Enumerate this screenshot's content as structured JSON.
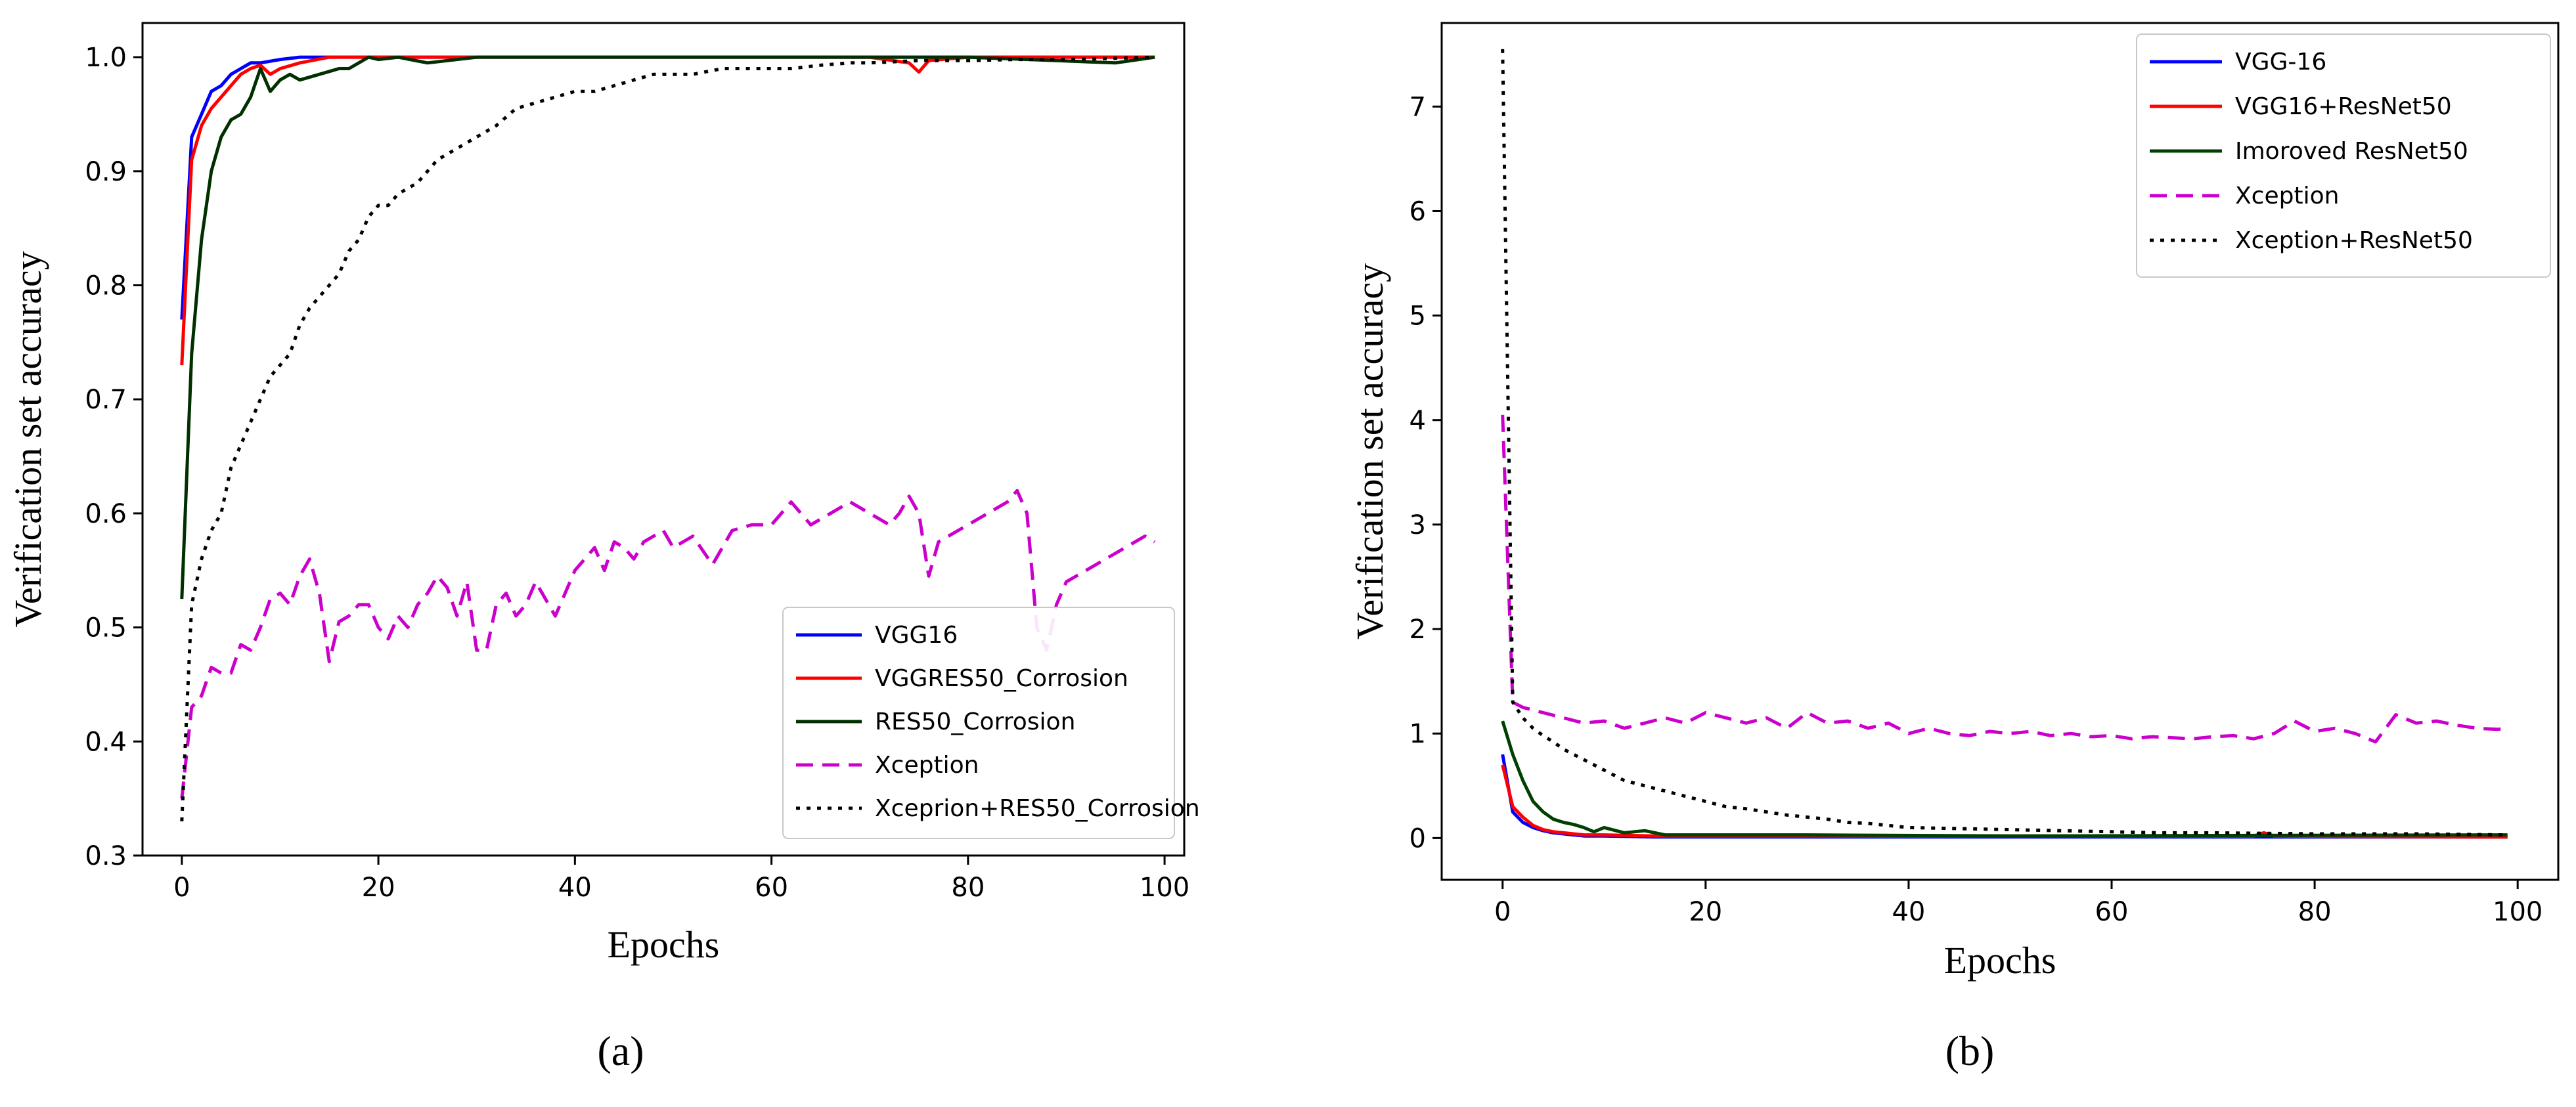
{
  "chart_data": [
    {
      "type": "line",
      "panel_label": "a",
      "title": "",
      "xlabel": "Epochs",
      "ylabel": "Verification set accuracy",
      "xlim": [
        -4,
        102
      ],
      "ylim": [
        0.3,
        1.03
      ],
      "xticks": [
        0,
        20,
        40,
        60,
        80,
        100
      ],
      "xtick_labels": [
        "0",
        "20",
        "40",
        "60",
        "80",
        "100"
      ],
      "yticks": [
        0.3,
        0.4,
        0.5,
        0.6,
        0.7,
        0.8,
        0.9,
        1.0
      ],
      "ytick_labels": [
        "0.3",
        "0.4",
        "0.5",
        "0.6",
        "0.7",
        "0.8",
        "0.9",
        "1.0"
      ],
      "grid": false,
      "legend_position": "lower-right",
      "series": [
        {
          "name": "VGG16",
          "color": "#0000ff",
          "style": "solid",
          "x": [
            0,
            1,
            2,
            3,
            4,
            5,
            6,
            7,
            8,
            10,
            12,
            15,
            20,
            30,
            50,
            99
          ],
          "y": [
            0.77,
            0.93,
            0.95,
            0.97,
            0.975,
            0.985,
            0.99,
            0.995,
            0.995,
            0.998,
            1.0,
            1.0,
            1.0,
            1.0,
            1.0,
            1.0
          ]
        },
        {
          "name": "VGGRES50_Corrosion",
          "color": "#ff0000",
          "style": "solid",
          "x": [
            0,
            1,
            2,
            3,
            4,
            5,
            6,
            7,
            8,
            9,
            10,
            12,
            15,
            20,
            30,
            50,
            70,
            74,
            75,
            76,
            80,
            99
          ],
          "y": [
            0.73,
            0.91,
            0.94,
            0.955,
            0.965,
            0.975,
            0.985,
            0.99,
            0.993,
            0.985,
            0.99,
            0.995,
            1.0,
            1.0,
            1.0,
            1.0,
            1.0,
            0.995,
            0.987,
            0.997,
            1.0,
            1.0
          ]
        },
        {
          "name": "RES50_Corrosion",
          "color": "#003000",
          "style": "solid",
          "x": [
            0,
            1,
            2,
            3,
            4,
            5,
            6,
            7,
            8,
            9,
            10,
            11,
            12,
            14,
            16,
            17,
            18,
            19,
            20,
            22,
            25,
            30,
            40,
            60,
            80,
            95,
            99
          ],
          "y": [
            0.525,
            0.74,
            0.84,
            0.9,
            0.93,
            0.945,
            0.95,
            0.965,
            0.99,
            0.97,
            0.98,
            0.985,
            0.98,
            0.985,
            0.99,
            0.99,
            0.995,
            1.0,
            0.998,
            1.0,
            0.995,
            1.0,
            1.0,
            1.0,
            1.0,
            0.995,
            1.0
          ]
        },
        {
          "name": "Xception",
          "color": "#cc00cc",
          "style": "dashed",
          "x": [
            0,
            1,
            2,
            3,
            4,
            5,
            6,
            7,
            8,
            9,
            10,
            11,
            12,
            13,
            14,
            15,
            16,
            17,
            18,
            19,
            20,
            21,
            22,
            23,
            24,
            25,
            26,
            27,
            28,
            29,
            30,
            31,
            32,
            33,
            34,
            35,
            36,
            37,
            38,
            39,
            40,
            41,
            42,
            43,
            44,
            45,
            46,
            47,
            48,
            49,
            50,
            52,
            54,
            56,
            58,
            60,
            62,
            64,
            66,
            68,
            70,
            72,
            73,
            74,
            75,
            76,
            77,
            78,
            80,
            82,
            84,
            85,
            86,
            87,
            88,
            89,
            90,
            92,
            94,
            96,
            98,
            99
          ],
          "y": [
            0.35,
            0.43,
            0.44,
            0.465,
            0.46,
            0.46,
            0.485,
            0.48,
            0.5,
            0.525,
            0.53,
            0.52,
            0.545,
            0.56,
            0.53,
            0.47,
            0.505,
            0.51,
            0.52,
            0.52,
            0.5,
            0.49,
            0.51,
            0.5,
            0.52,
            0.53,
            0.545,
            0.535,
            0.51,
            0.54,
            0.48,
            0.48,
            0.52,
            0.53,
            0.51,
            0.52,
            0.54,
            0.525,
            0.51,
            0.53,
            0.55,
            0.56,
            0.57,
            0.55,
            0.575,
            0.57,
            0.56,
            0.575,
            0.58,
            0.585,
            0.57,
            0.58,
            0.555,
            0.585,
            0.59,
            0.59,
            0.61,
            0.59,
            0.6,
            0.61,
            0.6,
            0.59,
            0.6,
            0.615,
            0.6,
            0.545,
            0.575,
            0.58,
            0.59,
            0.6,
            0.61,
            0.62,
            0.6,
            0.5,
            0.48,
            0.52,
            0.54,
            0.55,
            0.56,
            0.57,
            0.58,
            0.575
          ]
        },
        {
          "name": "Xceprion+RES50_Corrosion",
          "color": "#000000",
          "style": "dotted",
          "x": [
            0,
            1,
            2,
            3,
            4,
            5,
            6,
            7,
            8,
            9,
            10,
            11,
            12,
            13,
            14,
            15,
            16,
            17,
            18,
            19,
            20,
            21,
            22,
            24,
            26,
            28,
            30,
            32,
            34,
            36,
            38,
            40,
            42,
            44,
            46,
            48,
            50,
            52,
            55,
            58,
            60,
            62,
            65,
            68,
            70,
            75,
            80,
            85,
            90,
            95,
            99
          ],
          "y": [
            0.33,
            0.52,
            0.56,
            0.585,
            0.6,
            0.64,
            0.66,
            0.68,
            0.7,
            0.72,
            0.73,
            0.74,
            0.765,
            0.78,
            0.79,
            0.8,
            0.81,
            0.83,
            0.84,
            0.86,
            0.87,
            0.87,
            0.88,
            0.89,
            0.91,
            0.92,
            0.93,
            0.94,
            0.955,
            0.96,
            0.965,
            0.97,
            0.97,
            0.975,
            0.98,
            0.985,
            0.985,
            0.985,
            0.99,
            0.99,
            0.99,
            0.99,
            0.993,
            0.995,
            0.995,
            0.997,
            0.997,
            0.998,
            0.998,
            0.999,
            1.0
          ]
        }
      ]
    },
    {
      "type": "line",
      "panel_label": "b",
      "title": "",
      "xlabel": "Epochs",
      "ylabel": "Verification set accuracy",
      "xlim": [
        -6,
        104
      ],
      "ylim": [
        -0.4,
        7.8
      ],
      "xticks": [
        0,
        20,
        40,
        60,
        80,
        100
      ],
      "xtick_labels": [
        "0",
        "20",
        "40",
        "60",
        "80",
        "100"
      ],
      "yticks": [
        0,
        1,
        2,
        3,
        4,
        5,
        6,
        7
      ],
      "ytick_labels": [
        "0",
        "1",
        "2",
        "3",
        "4",
        "5",
        "6",
        "7"
      ],
      "grid": false,
      "legend_position": "upper-right",
      "series": [
        {
          "name": "VGG-16",
          "color": "#0000ff",
          "style": "solid",
          "x": [
            0,
            1,
            2,
            3,
            4,
            5,
            6,
            7,
            8,
            10,
            15,
            20,
            99
          ],
          "y": [
            0.8,
            0.25,
            0.15,
            0.1,
            0.07,
            0.05,
            0.04,
            0.03,
            0.02,
            0.02,
            0.01,
            0.01,
            0.01
          ]
        },
        {
          "name": "VGG16+ResNet50",
          "color": "#ff0000",
          "style": "solid",
          "x": [
            0,
            1,
            2,
            3,
            4,
            5,
            6,
            7,
            8,
            10,
            15,
            20,
            30,
            74,
            75,
            76,
            95,
            99
          ],
          "y": [
            0.7,
            0.3,
            0.2,
            0.12,
            0.08,
            0.06,
            0.05,
            0.04,
            0.03,
            0.03,
            0.02,
            0.02,
            0.02,
            0.02,
            0.05,
            0.02,
            0.01,
            0.01
          ]
        },
        {
          "name": "Imoroved ResNet50",
          "color": "#004000",
          "style": "solid",
          "x": [
            0,
            1,
            2,
            3,
            4,
            5,
            6,
            7,
            8,
            9,
            10,
            12,
            14,
            16,
            20,
            30,
            50,
            99
          ],
          "y": [
            1.12,
            0.8,
            0.55,
            0.35,
            0.25,
            0.18,
            0.15,
            0.13,
            0.1,
            0.06,
            0.1,
            0.05,
            0.07,
            0.03,
            0.03,
            0.03,
            0.02,
            0.03
          ]
        },
        {
          "name": "Xception",
          "color": "#cc00cc",
          "style": "dashed",
          "x": [
            0,
            1,
            2,
            4,
            6,
            8,
            10,
            12,
            14,
            16,
            18,
            20,
            22,
            24,
            26,
            28,
            30,
            32,
            34,
            36,
            38,
            40,
            42,
            44,
            46,
            48,
            50,
            52,
            54,
            56,
            58,
            60,
            62,
            64,
            66,
            68,
            70,
            72,
            74,
            76,
            78,
            80,
            82,
            84,
            86,
            88,
            90,
            92,
            94,
            96,
            98,
            99
          ],
          "y": [
            4.05,
            1.3,
            1.25,
            1.2,
            1.15,
            1.1,
            1.12,
            1.05,
            1.1,
            1.15,
            1.1,
            1.2,
            1.15,
            1.1,
            1.15,
            1.05,
            1.2,
            1.1,
            1.12,
            1.05,
            1.1,
            1.0,
            1.05,
            1.0,
            0.98,
            1.02,
            1.0,
            1.02,
            0.98,
            1.0,
            0.97,
            0.98,
            0.95,
            0.97,
            0.96,
            0.95,
            0.97,
            0.98,
            0.95,
            1.0,
            1.12,
            1.02,
            1.05,
            1.0,
            0.92,
            1.18,
            1.1,
            1.12,
            1.08,
            1.05,
            1.04,
            1.05
          ]
        },
        {
          "name": "Xception+ResNet50",
          "color": "#000000",
          "style": "dotted",
          "x": [
            0,
            1,
            2,
            3,
            4,
            5,
            6,
            8,
            10,
            12,
            14,
            16,
            18,
            20,
            22,
            24,
            26,
            28,
            30,
            32,
            34,
            36,
            38,
            40,
            45,
            50,
            55,
            60,
            65,
            70,
            80,
            90,
            99
          ],
          "y": [
            7.55,
            1.3,
            1.15,
            1.05,
            0.98,
            0.92,
            0.85,
            0.75,
            0.65,
            0.55,
            0.5,
            0.45,
            0.4,
            0.35,
            0.3,
            0.28,
            0.25,
            0.22,
            0.2,
            0.18,
            0.15,
            0.14,
            0.12,
            0.1,
            0.09,
            0.08,
            0.07,
            0.06,
            0.05,
            0.05,
            0.04,
            0.04,
            0.03
          ]
        }
      ]
    }
  ],
  "captions": {
    "a": "(a)",
    "b": "(b)"
  }
}
